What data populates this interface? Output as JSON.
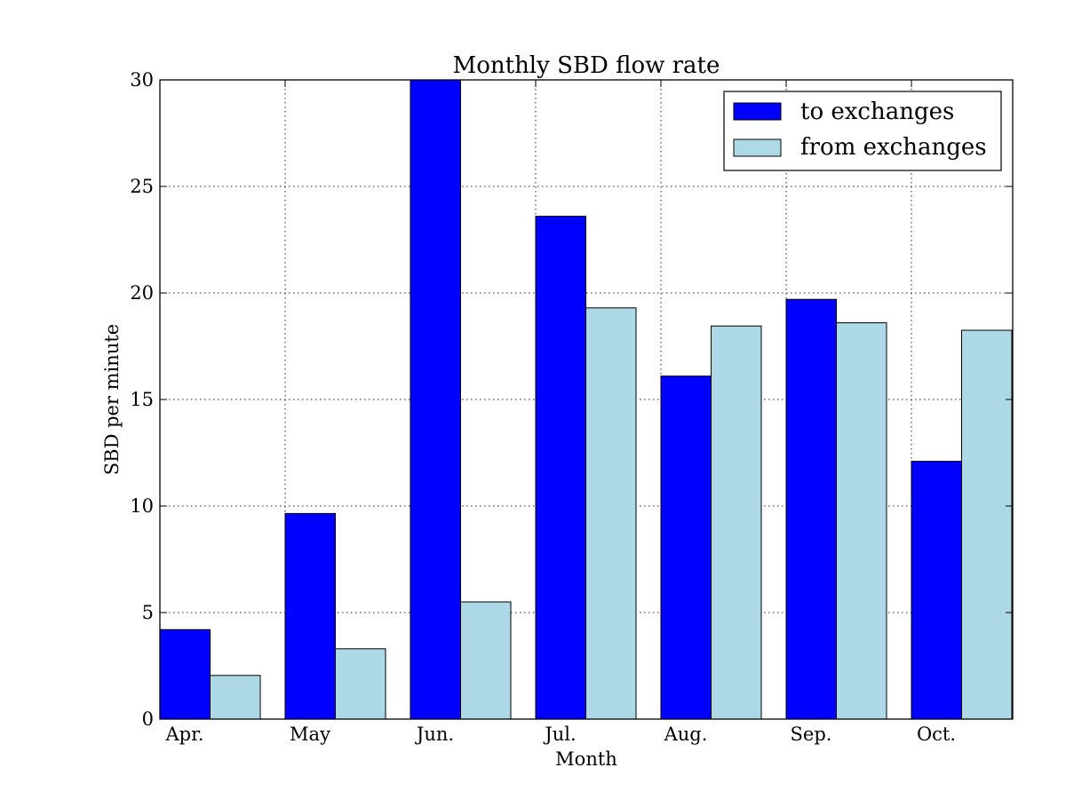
{
  "chart_data": {
    "type": "bar",
    "title": "Monthly SBD flow rate",
    "xlabel": "Month",
    "ylabel": "SBD per minute",
    "categories": [
      "Apr.",
      "May",
      "Jun.",
      "Jul.",
      "Aug.",
      "Sep.",
      "Oct."
    ],
    "series": [
      {
        "name": "to exchanges",
        "color": "#0000ff",
        "values": [
          4.2,
          9.65,
          30.0,
          23.6,
          16.1,
          19.7,
          12.1
        ]
      },
      {
        "name": "from exchanges",
        "color": "#add8e6",
        "values": [
          2.05,
          3.3,
          5.5,
          19.3,
          18.45,
          18.6,
          18.25
        ]
      }
    ],
    "ylim": [
      0,
      30
    ],
    "yticks": [
      0,
      5,
      10,
      15,
      20,
      25,
      30
    ],
    "grid": true,
    "legend_position": "top-right"
  }
}
